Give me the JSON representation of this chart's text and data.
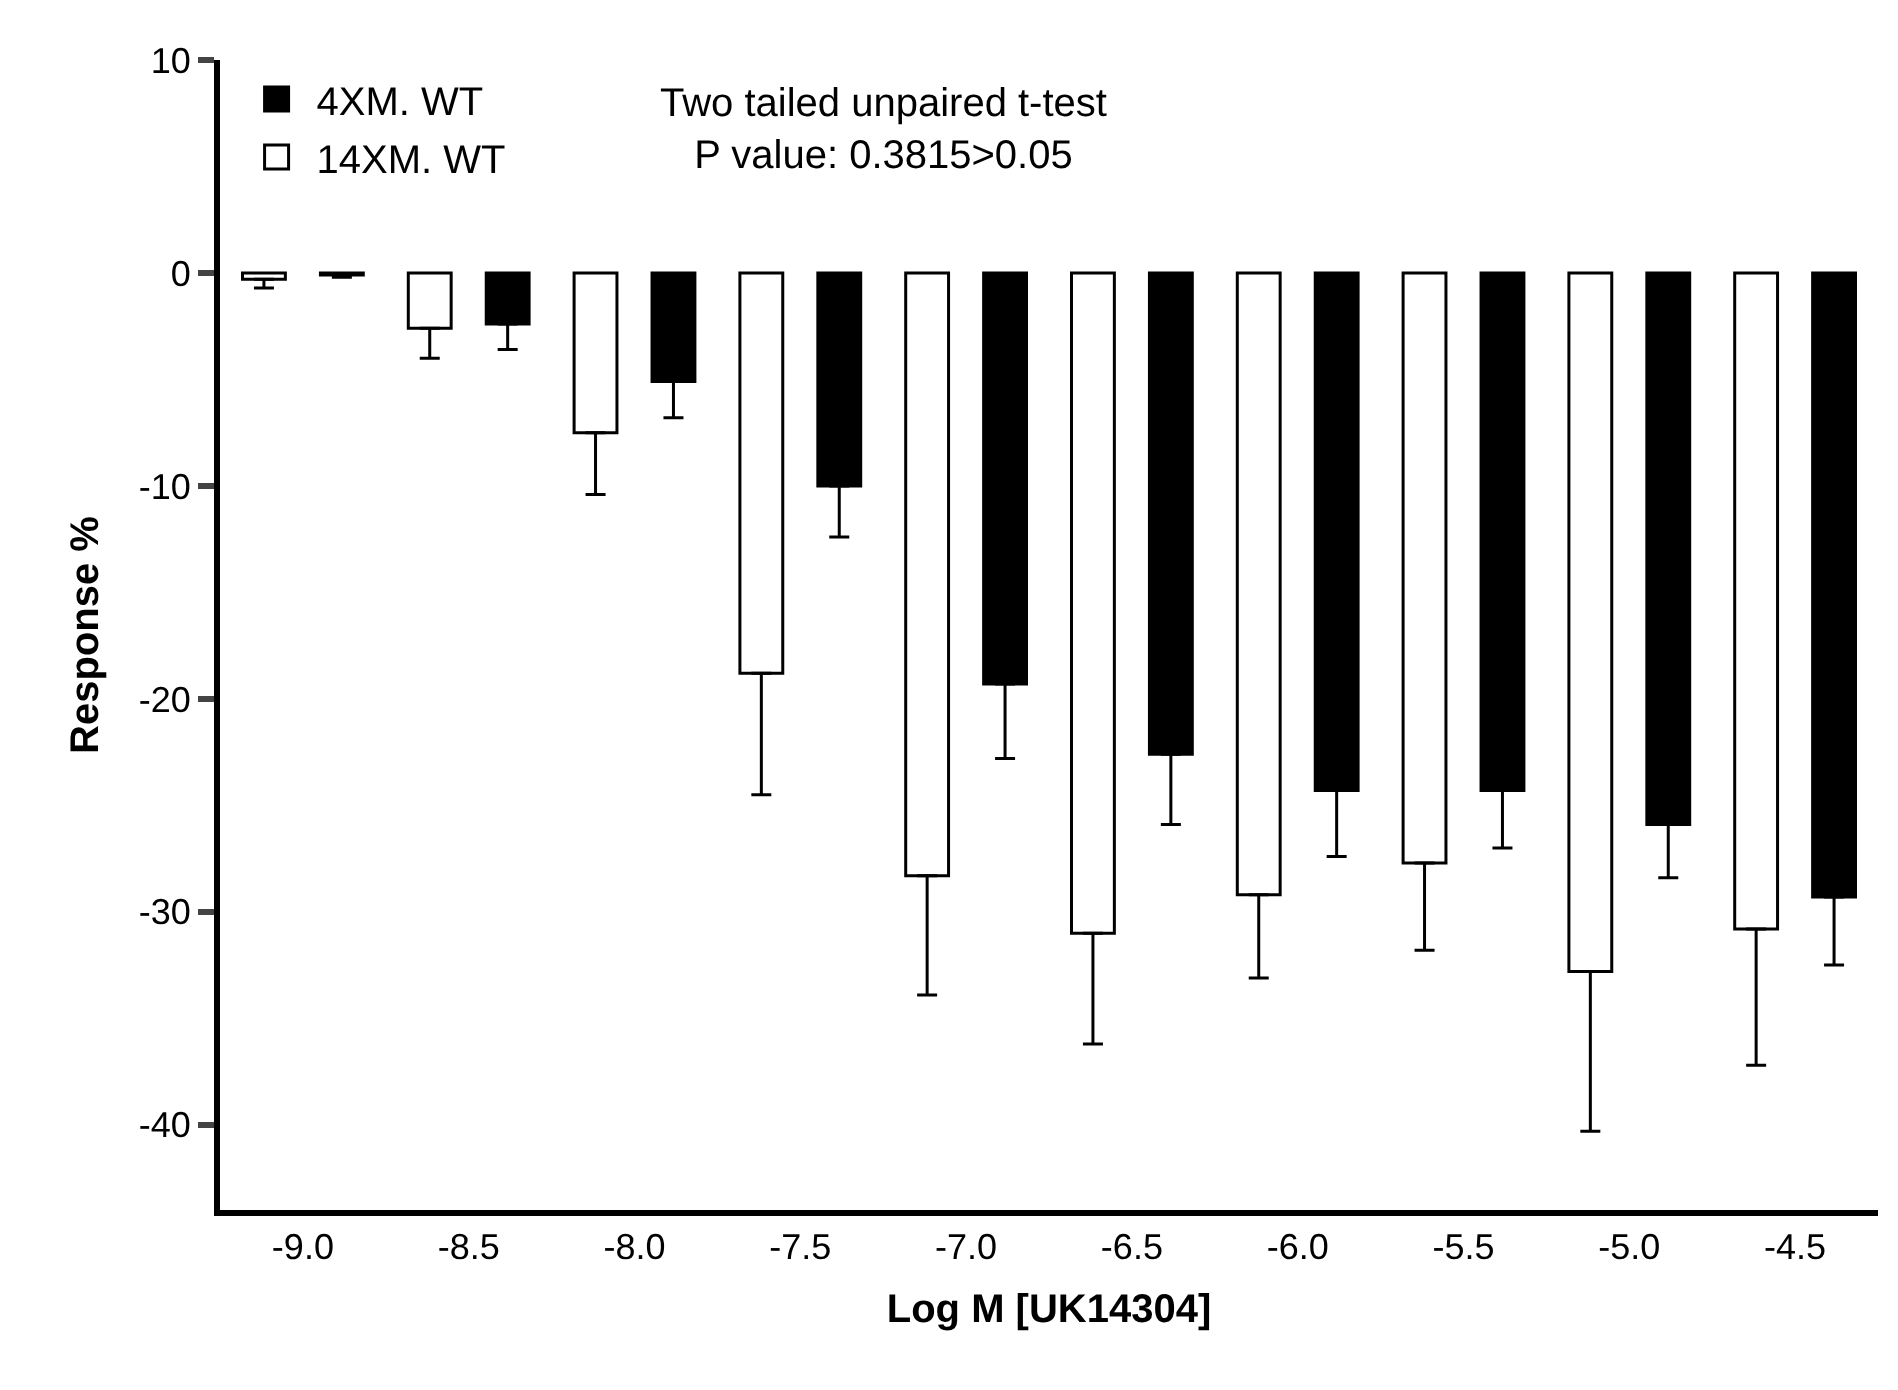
{
  "chart_data": {
    "type": "bar",
    "xlabel": "Log M [UK14304]",
    "ylabel": "Response %",
    "categories": [
      "-9.0",
      "-8.5",
      "-8.0",
      "-7.5",
      "-7.0",
      "-6.5",
      "-6.0",
      "-5.5",
      "-5.0",
      "-4.5"
    ],
    "series": [
      {
        "name": "14XM. WT",
        "color": "#ffffff",
        "values": [
          -0.3,
          -2.6,
          -7.5,
          -18.8,
          -28.3,
          -31.0,
          -29.2,
          -27.7,
          -32.8,
          -30.8
        ],
        "errors": [
          [
            -0.7,
            -0.3
          ],
          [
            -4.0,
            -2.6
          ],
          [
            -10.4,
            -7.5
          ],
          [
            -24.5,
            -18.8
          ],
          [
            -33.9,
            -28.3
          ],
          [
            -36.2,
            -31.0
          ],
          [
            -33.1,
            -29.2
          ],
          [
            -31.8,
            -27.7
          ],
          [
            -40.3,
            -32.8
          ],
          [
            -37.2,
            -30.8
          ]
        ]
      },
      {
        "name": "4XM. WT",
        "color": "#000000",
        "values": [
          -0.1,
          -2.4,
          -5.1,
          -10.0,
          -19.3,
          -22.6,
          -24.3,
          -24.3,
          -25.9,
          -29.3
        ],
        "errors": [
          [
            -0.2,
            -0.1
          ],
          [
            -3.6,
            -2.4
          ],
          [
            -6.8,
            -5.1
          ],
          [
            -12.4,
            -10.0
          ],
          [
            -22.8,
            -19.3
          ],
          [
            -25.9,
            -22.6
          ],
          [
            -27.4,
            -24.3
          ],
          [
            -27.0,
            -24.3
          ],
          [
            -28.4,
            -25.9
          ],
          [
            -32.5,
            -29.3
          ]
        ]
      }
    ],
    "ylim": [
      -44,
      10
    ],
    "yticks": [
      -40,
      -30,
      -20,
      -10,
      0,
      10
    ],
    "legend": "top left",
    "annotations": [
      "Two tailed unpaired t-test\nP value: 0.3815>0.05"
    ]
  }
}
